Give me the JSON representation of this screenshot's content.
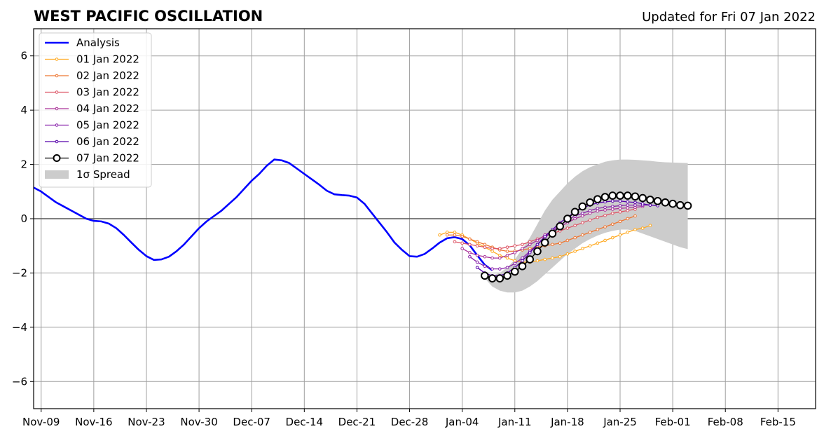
{
  "title": "WEST PACIFIC OSCILLATION",
  "subtitle": "Updated for Fri 07 Jan 2022",
  "chart_data": {
    "type": "line",
    "x_axis": {
      "type": "date",
      "range": [
        "2021-11-08",
        "2022-02-20"
      ],
      "tick_labels": [
        "Nov-09",
        "Nov-16",
        "Nov-23",
        "Nov-30",
        "Dec-07",
        "Dec-14",
        "Dec-21",
        "Dec-28",
        "Jan-04",
        "Jan-11",
        "Jan-18",
        "Jan-25",
        "Feb-01",
        "Feb-08",
        "Feb-15"
      ],
      "tick_dates": [
        "2021-11-09",
        "2021-11-16",
        "2021-11-23",
        "2021-11-30",
        "2021-12-07",
        "2021-12-14",
        "2021-12-21",
        "2021-12-28",
        "2022-01-04",
        "2022-01-11",
        "2022-01-18",
        "2022-01-25",
        "2022-02-01",
        "2022-02-08",
        "2022-02-15"
      ]
    },
    "y_axis": {
      "range": [
        -7,
        7
      ],
      "ticks": [
        -6,
        -4,
        -2,
        0,
        2,
        4,
        6
      ],
      "tick_labels": [
        "−6",
        "−4",
        "−2",
        "0",
        "2",
        "4",
        "6"
      ]
    },
    "grid": true,
    "zero_line": true,
    "legend": {
      "position": "top-left",
      "entries": [
        "Analysis",
        "01 Jan 2022",
        "02 Jan 2022",
        "03 Jan 2022",
        "04 Jan 2022",
        "05 Jan 2022",
        "06 Jan 2022",
        "07 Jan 2022",
        "1σ Spread"
      ]
    },
    "series": [
      {
        "name": "Analysis",
        "color": "#0000ff",
        "style": "line",
        "start": "2021-11-08",
        "values": [
          1.15,
          1.0,
          0.8,
          0.6,
          0.45,
          0.3,
          0.15,
          0.0,
          -0.08,
          -0.1,
          -0.18,
          -0.35,
          -0.6,
          -0.88,
          -1.15,
          -1.38,
          -1.52,
          -1.5,
          -1.4,
          -1.2,
          -0.95,
          -0.65,
          -0.35,
          -0.1,
          0.1,
          0.3,
          0.55,
          0.8,
          1.1,
          1.4,
          1.65,
          1.95,
          2.18,
          2.15,
          2.05,
          1.85,
          1.65,
          1.45,
          1.25,
          1.03,
          0.9,
          0.87,
          0.85,
          0.78,
          0.55,
          0.2,
          -0.15,
          -0.5,
          -0.88,
          -1.15,
          -1.38,
          -1.4,
          -1.3,
          -1.1,
          -0.88,
          -0.72,
          -0.68,
          -0.75,
          -0.98,
          -1.35,
          -1.7,
          -1.9
        ]
      },
      {
        "name": "01 Jan 2022",
        "color": "#ffaa22",
        "style": "line-small-markers",
        "start": "2022-01-01",
        "values": [
          -0.6,
          -0.5,
          -0.5,
          -0.6,
          -0.75,
          -0.9,
          -1.05,
          -1.2,
          -1.35,
          -1.45,
          -1.55,
          -1.6,
          -1.6,
          -1.55,
          -1.5,
          -1.45,
          -1.4,
          -1.3,
          -1.2,
          -1.1,
          -1.0,
          -0.9,
          -0.8,
          -0.7,
          -0.6,
          -0.5,
          -0.4,
          -0.35,
          -0.25
        ]
      },
      {
        "name": "02 Jan 2022",
        "color": "#ee7733",
        "style": "line-small-markers",
        "start": "2022-01-02",
        "values": [
          -0.6,
          -0.6,
          -0.65,
          -0.75,
          -0.85,
          -0.95,
          -1.05,
          -1.15,
          -1.2,
          -1.2,
          -1.15,
          -1.1,
          -1.05,
          -1.0,
          -0.95,
          -0.9,
          -0.8,
          -0.7,
          -0.6,
          -0.5,
          -0.4,
          -0.3,
          -0.2,
          -0.1,
          0.0,
          0.1
        ]
      },
      {
        "name": "03 Jan 2022",
        "color": "#dd5566",
        "style": "line-small-markers",
        "start": "2022-01-03",
        "values": [
          -0.85,
          -0.9,
          -0.95,
          -1.0,
          -1.05,
          -1.1,
          -1.1,
          -1.05,
          -1.0,
          -0.95,
          -0.85,
          -0.75,
          -0.65,
          -0.55,
          -0.45,
          -0.35,
          -0.25,
          -0.15,
          -0.05,
          0.05,
          0.12,
          0.2,
          0.25,
          0.3,
          0.35
        ]
      },
      {
        "name": "04 Jan 2022",
        "color": "#aa3399",
        "style": "line-small-markers",
        "start": "2022-01-04",
        "values": [
          -1.1,
          -1.25,
          -1.35,
          -1.4,
          -1.45,
          -1.45,
          -1.35,
          -1.25,
          -1.1,
          -0.95,
          -0.8,
          -0.6,
          -0.45,
          -0.3,
          -0.15,
          0.0,
          0.1,
          0.2,
          0.28,
          0.32,
          0.35,
          0.38,
          0.4,
          0.42,
          0.45
        ]
      },
      {
        "name": "05 Jan 2022",
        "color": "#8822aa",
        "style": "line-small-markers",
        "start": "2022-01-05",
        "values": [
          -1.4,
          -1.6,
          -1.75,
          -1.85,
          -1.85,
          -1.8,
          -1.65,
          -1.45,
          -1.2,
          -0.95,
          -0.7,
          -0.45,
          -0.25,
          -0.05,
          0.1,
          0.2,
          0.3,
          0.38,
          0.42,
          0.45,
          0.48,
          0.5,
          0.5,
          0.5,
          0.5
        ]
      },
      {
        "name": "06 Jan 2022",
        "color": "#5500aa",
        "style": "line-small-markers",
        "start": "2022-01-06",
        "values": [
          -1.8,
          -2.0,
          -2.1,
          -2.1,
          -2.0,
          -1.8,
          -1.55,
          -1.25,
          -0.95,
          -0.65,
          -0.4,
          -0.15,
          0.05,
          0.25,
          0.4,
          0.5,
          0.58,
          0.62,
          0.65,
          0.65,
          0.62,
          0.6,
          0.55,
          0.5,
          0.48
        ]
      },
      {
        "name": "07 Jan 2022",
        "color": "#000000",
        "style": "line-open-circles",
        "start": "2022-01-07",
        "values": [
          -2.1,
          -2.2,
          -2.2,
          -2.1,
          -1.95,
          -1.75,
          -1.5,
          -1.2,
          -0.88,
          -0.55,
          -0.28,
          0.0,
          0.25,
          0.45,
          0.6,
          0.72,
          0.8,
          0.85,
          0.85,
          0.85,
          0.82,
          0.76,
          0.7,
          0.65,
          0.6,
          0.55,
          0.5,
          0.48
        ]
      }
    ],
    "spread": {
      "name": "1σ Spread",
      "color": "#cccccc",
      "start": "2022-01-07",
      "upper": [
        -2.1,
        -2.1,
        -2.0,
        -1.8,
        -1.5,
        -1.1,
        -0.7,
        -0.2,
        0.3,
        0.7,
        1.0,
        1.3,
        1.55,
        1.75,
        1.9,
        2.0,
        2.1,
        2.15,
        2.18,
        2.18,
        2.17,
        2.15,
        2.13,
        2.1,
        2.08,
        2.07,
        2.06,
        2.05
      ],
      "lower": [
        -2.2,
        -2.5,
        -2.65,
        -2.72,
        -2.72,
        -2.65,
        -2.5,
        -2.3,
        -2.05,
        -1.8,
        -1.55,
        -1.3,
        -1.1,
        -0.9,
        -0.75,
        -0.62,
        -0.52,
        -0.45,
        -0.4,
        -0.4,
        -0.45,
        -0.55,
        -0.65,
        -0.75,
        -0.85,
        -0.95,
        -1.05,
        -1.12
      ]
    }
  }
}
